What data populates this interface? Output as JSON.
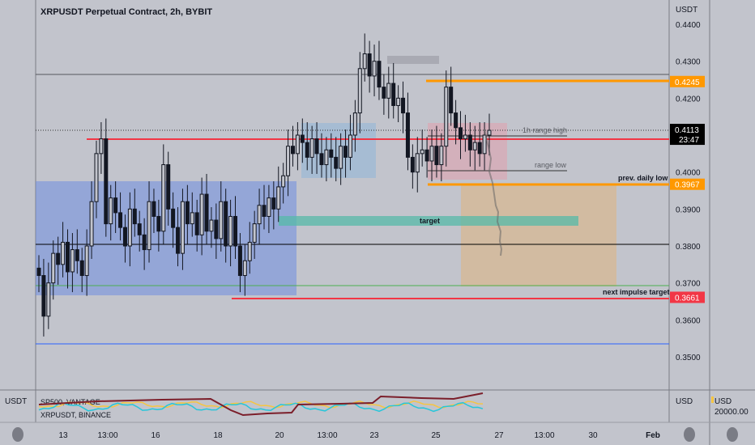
{
  "header": {
    "title": "XRPUSDT Perpetual Contract, 2h, BYBIT"
  },
  "price_axis": {
    "currency_label": "USDT",
    "ticks": [
      "0.4400",
      "0.4300",
      "0.4200",
      "0.4100",
      "0.4000",
      "0.3900",
      "0.3800",
      "0.3700",
      "0.3600",
      "0.3500"
    ],
    "badges": [
      {
        "price": 0.4245,
        "label": "0.4245",
        "color": "#ff9800"
      },
      {
        "price": 0.4113,
        "label": "0.4113",
        "sub": "23:47",
        "color": "#000000"
      },
      {
        "price": 0.3967,
        "label": "0.3967",
        "color": "#ff9800"
      },
      {
        "price": 0.3661,
        "label": "0.3661",
        "color": "#f23645"
      }
    ]
  },
  "time_axis": {
    "labels": [
      "13",
      "13:00",
      "16",
      "18",
      "20",
      "13:00",
      "23",
      "25",
      "27",
      "13:00",
      "30",
      "Feb"
    ]
  },
  "annotations": {
    "range_high": "1h range high",
    "range_low": "range low",
    "prev_daily_low": "prev. daily low",
    "target": "target",
    "next_impulse": "next impulse target"
  },
  "lower_pane": {
    "axis_left_label": "USDT",
    "axis_right_label": "USD",
    "far_right_label": "USD",
    "far_right_value": "20000.00",
    "series": [
      {
        "name": "SP500, VANTAGE",
        "color": "#7b1e2a"
      },
      {
        "name": "XRPUSDT, BINANCE",
        "color": "#26c6da"
      }
    ],
    "extra_series_color": "#f5c542"
  },
  "chart_data": {
    "type": "candlestick",
    "title": "XRPUSDT Perpetual Contract, 2h, BYBIT",
    "ylim": [
      0.34,
      0.445
    ],
    "y_ticks": [
      0.44,
      0.43,
      0.42,
      0.41,
      0.4,
      0.39,
      0.38,
      0.37,
      0.36,
      0.35
    ],
    "x_labels": [
      "13",
      "13:00",
      "16",
      "18",
      "20",
      "13:00",
      "23",
      "25",
      "27",
      "13:00",
      "30",
      "Feb"
    ],
    "closes": [
      0.372,
      0.361,
      0.37,
      0.378,
      0.375,
      0.381,
      0.373,
      0.379,
      0.376,
      0.372,
      0.38,
      0.392,
      0.405,
      0.409,
      0.386,
      0.393,
      0.389,
      0.385,
      0.38,
      0.39,
      0.386,
      0.383,
      0.379,
      0.392,
      0.388,
      0.384,
      0.402,
      0.39,
      0.385,
      0.378,
      0.392,
      0.386,
      0.389,
      0.383,
      0.394,
      0.384,
      0.387,
      0.382,
      0.392,
      0.38,
      0.388,
      0.38,
      0.372,
      0.376,
      0.381,
      0.386,
      0.391,
      0.388,
      0.393,
      0.39,
      0.396,
      0.399,
      0.407,
      0.405,
      0.41,
      0.408,
      0.404,
      0.409,
      0.405,
      0.402,
      0.406,
      0.404,
      0.401,
      0.407,
      0.404,
      0.41,
      0.416,
      0.428,
      0.432,
      0.426,
      0.43,
      0.423,
      0.42,
      0.424,
      0.418,
      0.42,
      0.416,
      0.404,
      0.4,
      0.405,
      0.406,
      0.403,
      0.407,
      0.402,
      0.407,
      0.423,
      0.416,
      0.412,
      0.409,
      0.41,
      0.406,
      0.408,
      0.405,
      0.41,
      0.4113
    ],
    "horizontal_levels": [
      {
        "price": 0.4245,
        "label": "",
        "color": "#ff9800"
      },
      {
        "price": 0.4113,
        "label": "",
        "color": "#000000"
      },
      {
        "price": 0.4085,
        "label": "1h range high",
        "color": "#f23645"
      },
      {
        "price": 0.4005,
        "label": "range low",
        "color": "#333333"
      },
      {
        "price": 0.3967,
        "label": "prev. daily low",
        "color": "#ff9800"
      },
      {
        "price": 0.3806,
        "label": "",
        "color": "#000000"
      },
      {
        "price": 0.3695,
        "label": "",
        "color": "#4caf50"
      },
      {
        "price": 0.3661,
        "label": "next impulse target",
        "color": "#f23645"
      },
      {
        "price": 0.3535,
        "label": "",
        "color": "#2962ff"
      }
    ],
    "zones": [
      {
        "name": "range",
        "from": 0.3675,
        "to": 0.3985,
        "color": "#5b7fd6"
      },
      {
        "name": "target",
        "from": 0.3875,
        "to": 0.3888,
        "color": "#4db6ac"
      },
      {
        "name": "projection",
        "from": 0.3695,
        "to": 0.3967,
        "color": "#d9b27a"
      }
    ]
  }
}
